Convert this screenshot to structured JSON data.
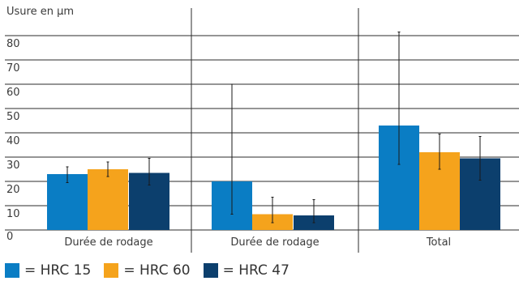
{
  "chart_data": {
    "type": "bar",
    "ylabel": "Usure en µm",
    "yticks": [
      0,
      10,
      20,
      30,
      40,
      50,
      60,
      70,
      80
    ],
    "ylim": [
      0,
      80
    ],
    "grid": true,
    "categories": [
      "Durée de rodage",
      "Durée de rodage",
      "Total"
    ],
    "series": [
      {
        "name": "HRC 15",
        "color": "#0a7dc4",
        "values": [
          23,
          20,
          43
        ],
        "error_low": [
          19.5,
          6.5,
          27
        ],
        "error_high": [
          26,
          60,
          81.5
        ]
      },
      {
        "name": "HRC 60",
        "color": "#f5a31c",
        "values": [
          25,
          6.5,
          32
        ],
        "error_low": [
          22,
          3,
          25
        ],
        "error_high": [
          28,
          13.5,
          39.5
        ]
      },
      {
        "name": "HRC 47",
        "color": "#0c3f6d",
        "values": [
          23.5,
          6,
          29.5
        ],
        "error_low": [
          18.5,
          3,
          20.5
        ],
        "error_high": [
          29.5,
          12.5,
          38.5
        ]
      }
    ],
    "legend": {
      "placement": "bottom-left",
      "prefix": "= "
    }
  }
}
